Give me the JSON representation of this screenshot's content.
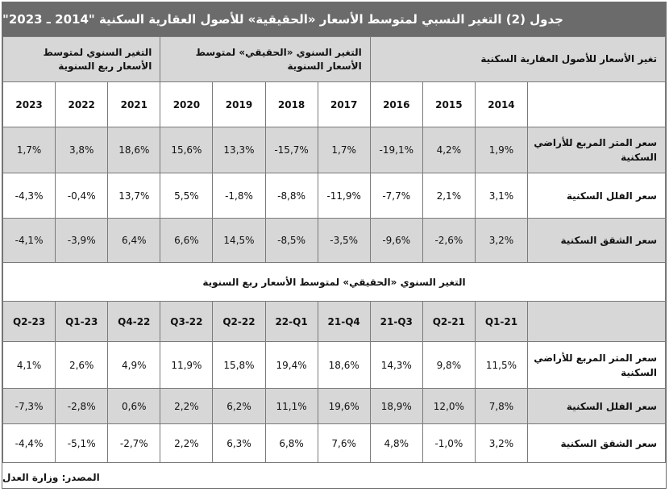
{
  "title": "جدول (2) التغير النسبي لمتوسط الأسعار «الحقيقية» للأصول العقارية السكنية \"2014 ـ 2023\"",
  "header_groups": {
    "group1": "تغير الأسعار للأصول العقارية السكنية",
    "group2": "التغير السنوي «الحقيقي» لمتوسط الأسعار السنوية",
    "group3": "التغير السنوي لمتوسط الأسعار ربع السنوية"
  },
  "years": [
    "2014",
    "2015",
    "2016",
    "2017",
    "2018",
    "2019",
    "2020",
    "2021",
    "2022",
    "2023"
  ],
  "annual_rows": [
    {
      "label": "سعر المتر المربع للأراضي السكنية",
      "values": [
        "1,9%",
        "4,2%",
        "-19,1%",
        "1,7%",
        "-15,7%",
        "13,3%",
        "15,6%",
        "18,6%",
        "3,8%",
        "1,7%"
      ]
    },
    {
      "label": "سعر الفلل السكنية",
      "values": [
        "3,1%",
        "2,1%",
        "-7,7%",
        "-11,9%",
        "-8,8%",
        "-1,8%",
        "5,5%",
        "13,7%",
        "-0,4%",
        "-4,3%"
      ]
    },
    {
      "label": "سعر الشقق السكنية",
      "values": [
        "3,2%",
        "-2,6%",
        "-9,6%",
        "-3,5%",
        "-8,5%",
        "14,5%",
        "6,6%",
        "6,4%",
        "-3,9%",
        "-4,1%"
      ]
    }
  ],
  "quarterly_section_title": "التغير السنوي «الحقيقي» لمتوسط الأسعار ربع السنوية",
  "quarters": [
    "Q1-21",
    "Q2-21",
    "21-Q3",
    "21-Q4",
    "22-Q1",
    "Q2-22",
    "Q3-22",
    "Q4-22",
    "Q1-23",
    "Q2-23"
  ],
  "quarterly_rows": [
    {
      "label": "سعر المتر المربع للأراضي السكنية",
      "values": [
        "11,5%",
        "9,8%",
        "14,3%",
        "18,6%",
        "19,4%",
        "15,8%",
        "11,9%",
        "4,9%",
        "2,6%",
        "4,1%"
      ]
    },
    {
      "label": "سعر الفلل السكنية",
      "values": [
        "7,8%",
        "12,0%",
        "18,9%",
        "19,6%",
        "11,1%",
        "6,2%",
        "2,2%",
        "0,6%",
        "-2,8%",
        "-7,3%"
      ]
    },
    {
      "label": "سعر الشقق السكنية",
      "values": [
        "3,2%",
        "-1,0%",
        "4,8%",
        "7,6%",
        "6,8%",
        "6,3%",
        "2,2%",
        "-2,7%",
        "-5,1%",
        "-4,4%"
      ]
    }
  ],
  "source": "المصدر: وزارة العدل"
}
